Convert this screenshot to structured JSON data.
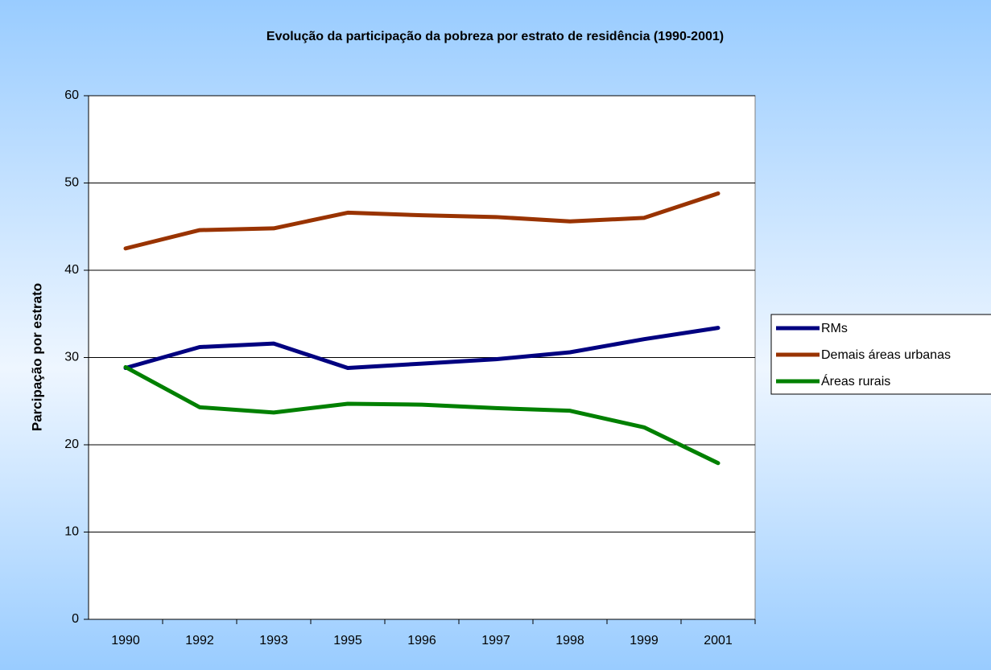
{
  "chart_data": {
    "type": "line",
    "title": "Evolução da participação da pobreza por estrato de residência (1990-2001)",
    "y_label": "Parcipação por estrato",
    "categories": [
      "1990",
      "1992",
      "1993",
      "1995",
      "1996",
      "1997",
      "1998",
      "1999",
      "2001"
    ],
    "series": [
      {
        "name": "RMs",
        "color": "#000080",
        "values": [
          28.8,
          31.2,
          31.6,
          28.8,
          29.3,
          29.8,
          30.6,
          32.1,
          33.4
        ]
      },
      {
        "name": "Demais áreas urbanas",
        "color": "#993300",
        "values": [
          42.5,
          44.6,
          44.8,
          46.6,
          46.3,
          46.1,
          45.6,
          46.0,
          48.8
        ]
      },
      {
        "name": "Áreas rurais",
        "color": "#008000",
        "values": [
          28.9,
          24.3,
          23.7,
          24.7,
          24.6,
          24.2,
          23.9,
          22.0,
          17.9
        ]
      }
    ],
    "ylim": [
      0,
      60
    ],
    "yticks": [
      0,
      10,
      20,
      30,
      40,
      50,
      60
    ],
    "grid": true,
    "legend": "right"
  }
}
